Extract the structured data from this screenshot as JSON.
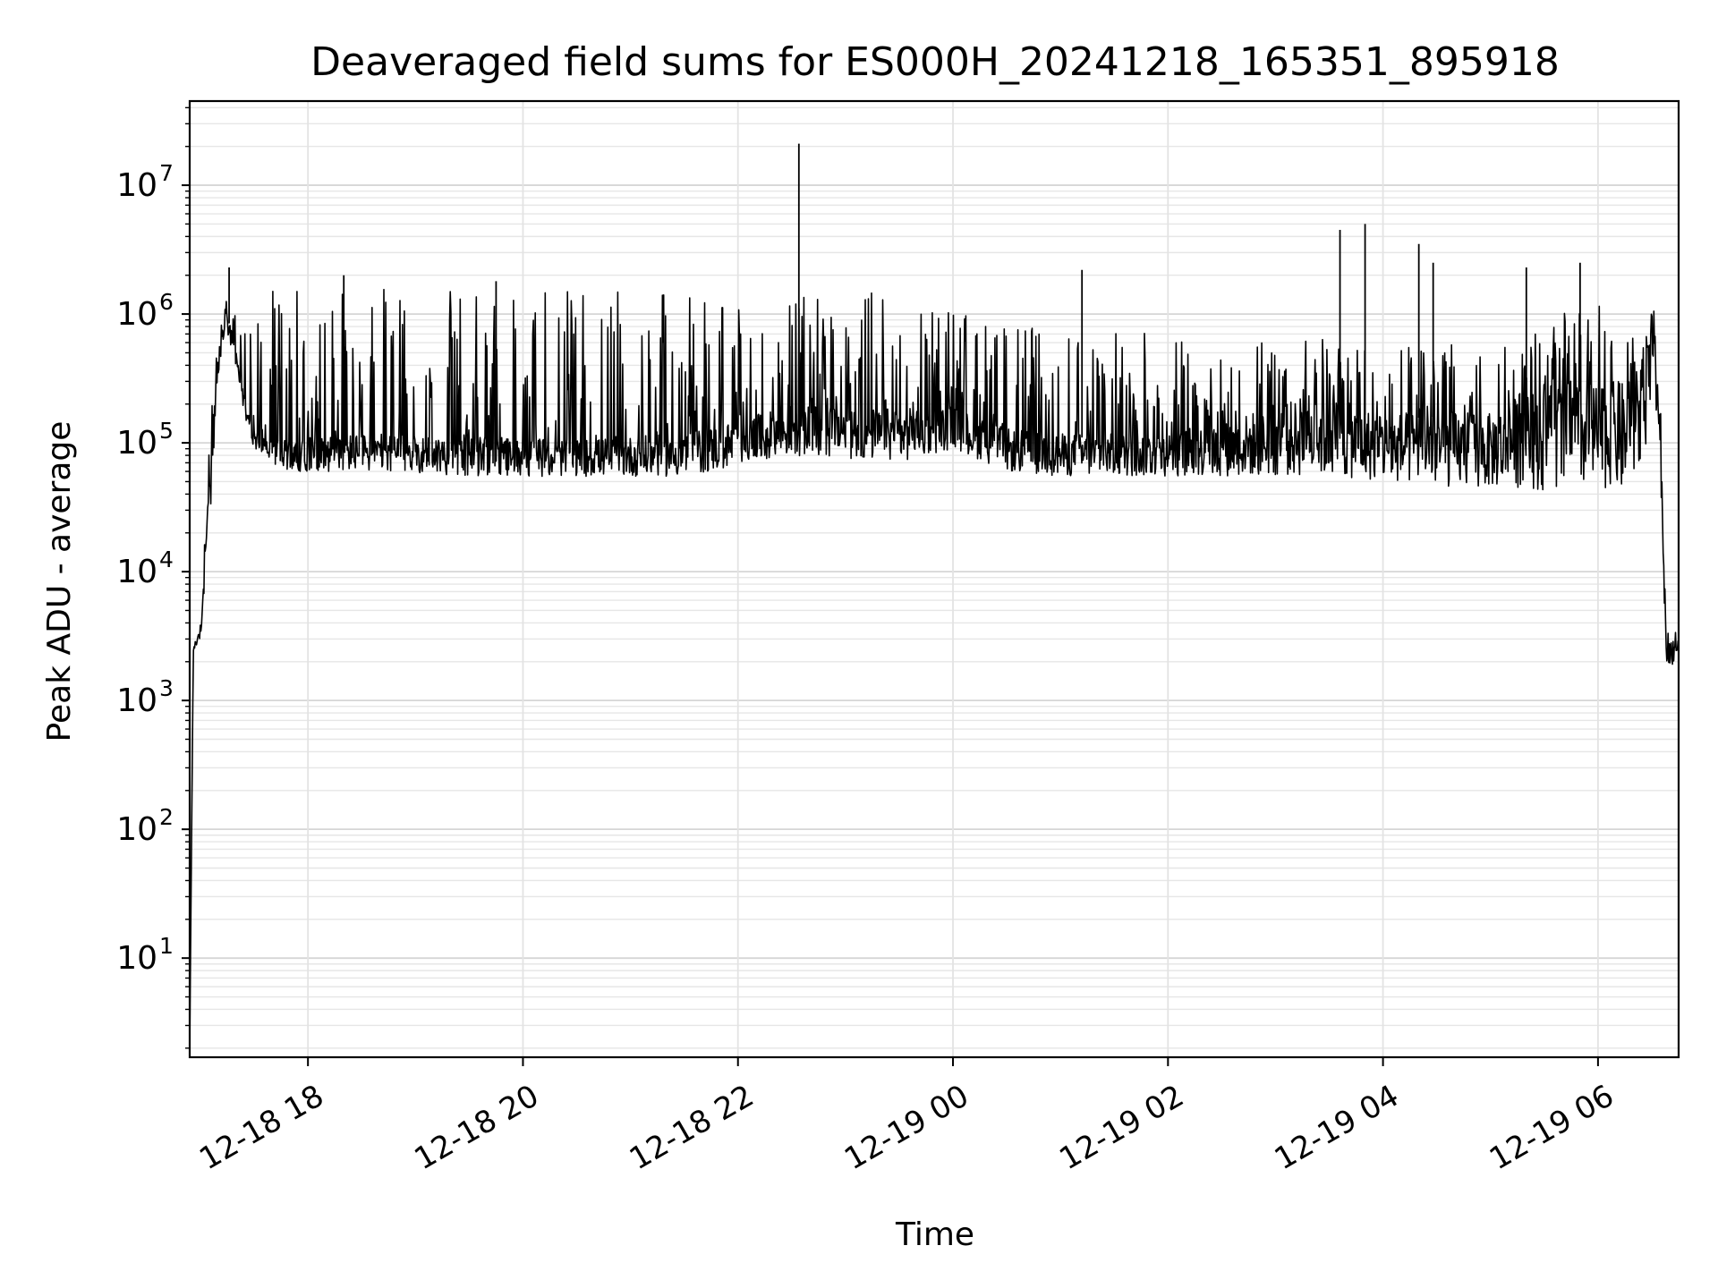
{
  "chart_data": {
    "type": "line",
    "title": "Deaveraged field sums for ES000H_20241218_165351_895918",
    "xlabel": "Time",
    "ylabel": "Peak ADU - average",
    "yscale": "log",
    "ylim": [
      1.7,
      45000000
    ],
    "xlim": [
      "2024-12-18 16:54",
      "2024-12-19 06:45"
    ],
    "grid": "major and minor, light gray",
    "x_ticks": [
      {
        "t": "2024-12-18 18:00",
        "label": "12-18 18"
      },
      {
        "t": "2024-12-18 20:00",
        "label": "12-18 20"
      },
      {
        "t": "2024-12-18 22:00",
        "label": "12-18 22"
      },
      {
        "t": "2024-12-19 00:00",
        "label": "12-19 00"
      },
      {
        "t": "2024-12-19 02:00",
        "label": "12-19 02"
      },
      {
        "t": "2024-12-19 04:00",
        "label": "12-19 04"
      },
      {
        "t": "2024-12-19 06:00",
        "label": "12-19 06"
      }
    ],
    "y_ticks": [
      {
        "value": 10,
        "label": "10",
        "exp": "1"
      },
      {
        "value": 100,
        "label": "10",
        "exp": "2"
      },
      {
        "value": 1000,
        "label": "10",
        "exp": "3"
      },
      {
        "value": 10000,
        "label": "10",
        "exp": "4"
      },
      {
        "value": 100000,
        "label": "10",
        "exp": "5"
      },
      {
        "value": 1000000,
        "label": "10",
        "exp": "6"
      },
      {
        "value": 10000000,
        "label": "10",
        "exp": "7"
      }
    ],
    "series": [
      {
        "color": "#000000",
        "style": "noisy envelope",
        "x": [
          "2024-12-18 16:54",
          "2024-12-18 16:56",
          "2024-12-18 17:00",
          "2024-12-18 17:05",
          "2024-12-18 17:10",
          "2024-12-18 17:14",
          "2024-12-18 17:20",
          "2024-12-18 17:25",
          "2024-12-18 17:30",
          "2024-12-18 17:40",
          "2024-12-18 17:50",
          "2024-12-18 18:15",
          "2024-12-18 18:50",
          "2024-12-18 19:30",
          "2024-12-18 20:30",
          "2024-12-18 21:30",
          "2024-12-18 22:00",
          "2024-12-18 22:30",
          "2024-12-18 23:00",
          "2024-12-18 23:30",
          "2024-12-19 00:00",
          "2024-12-19 00:30",
          "2024-12-19 01:00",
          "2024-12-19 01:30",
          "2024-12-19 02:00",
          "2024-12-19 02:30",
          "2024-12-19 03:00",
          "2024-12-19 03:30",
          "2024-12-19 04:00",
          "2024-12-19 04:30",
          "2024-12-19 05:00",
          "2024-12-19 05:20",
          "2024-12-19 05:40",
          "2024-12-19 06:00",
          "2024-12-19 06:15",
          "2024-12-19 06:25",
          "2024-12-19 06:31",
          "2024-12-19 06:35",
          "2024-12-19 06:38",
          "2024-12-19 06:42",
          "2024-12-19 06:45"
        ],
        "low": [
          2,
          2400,
          3000,
          20000,
          300000,
          800000,
          350000,
          150000,
          90000,
          70000,
          60000,
          60000,
          60000,
          55000,
          55000,
          55000,
          65000,
          80000,
          75000,
          70000,
          90000,
          60000,
          55000,
          55000,
          55000,
          55000,
          55000,
          55000,
          50000,
          45000,
          45000,
          45000,
          40000,
          45000,
          40000,
          60000,
          300000,
          50000,
          2000,
          1900,
          2500
        ],
        "typ": [
          2,
          2600,
          3500,
          50000,
          500000,
          1100000,
          500000,
          200000,
          120000,
          100000,
          100000,
          110000,
          110000,
          105000,
          100000,
          110000,
          140000,
          180000,
          180000,
          170000,
          180000,
          120000,
          110000,
          110000,
          115000,
          130000,
          180000,
          200000,
          150000,
          160000,
          150000,
          220000,
          250000,
          250000,
          250000,
          350000,
          1000000,
          100000,
          3000,
          2500,
          3500
        ],
        "high": [
          2,
          2800,
          4000,
          100000,
          1000000,
          1300000,
          1000000,
          800000,
          1500000,
          1600000,
          1600000,
          1600000,
          1600000,
          1550000,
          1500000,
          1450000,
          1300000,
          1300000,
          1550000,
          1500000,
          1100000,
          800000,
          800000,
          750000,
          700000,
          600000,
          650000,
          650000,
          550000,
          600000,
          600000,
          700000,
          1000000,
          1200000,
          800000,
          600000,
          1200000,
          200000,
          4000,
          3000,
          4000
        ],
        "spikes": [
          {
            "t": "2024-12-18 17:16",
            "value": 2300000
          },
          {
            "t": "2024-12-18 18:20",
            "value": 2000000
          },
          {
            "t": "2024-12-18 19:45",
            "value": 1800000
          },
          {
            "t": "2024-12-18 22:34",
            "value": 21000000
          },
          {
            "t": "2024-12-19 01:12",
            "value": 2200000
          },
          {
            "t": "2024-12-19 03:36",
            "value": 4500000
          },
          {
            "t": "2024-12-19 03:50",
            "value": 5000000
          },
          {
            "t": "2024-12-19 04:20",
            "value": 3500000
          },
          {
            "t": "2024-12-19 04:28",
            "value": 2500000
          },
          {
            "t": "2024-12-19 05:20",
            "value": 2300000
          },
          {
            "t": "2024-12-19 05:50",
            "value": 2500000
          }
        ]
      }
    ]
  }
}
